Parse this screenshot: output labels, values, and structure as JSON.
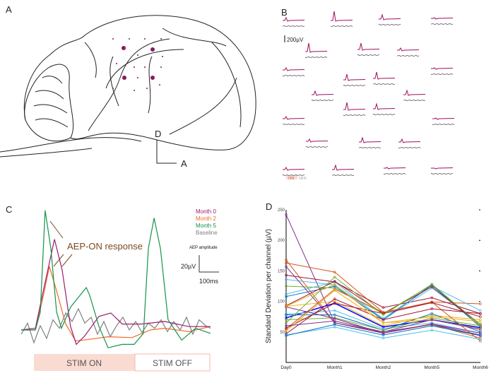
{
  "panels": {
    "a": "A",
    "b": "B",
    "c": "C",
    "d": "D"
  },
  "panel_a": {
    "orientation_dorsal": "D",
    "orientation_anterior": "A"
  },
  "panel_b": {
    "scale_label": "200µV",
    "legend_on": "ON",
    "legend_off": "OFF",
    "colors": {
      "on": "#a0105f",
      "off": "#555555"
    },
    "channel_peaks_uV": [
      80,
      260,
      120,
      20,
      240,
      180,
      60,
      60,
      160,
      180,
      20,
      100,
      120,
      200,
      140,
      60,
      20,
      60,
      120,
      80,
      60,
      120,
      20,
      0
    ]
  },
  "chart_data": [
    {
      "type": "line",
      "panel": "C",
      "annotation": "AEP-ON response",
      "scalebar": {
        "title": "AEP amplitude",
        "y_label": "20µV",
        "x_label": "100ms"
      },
      "stim_on_label": "STIM ON",
      "stim_off_label": "STIM OFF",
      "legend_placement": "top-right",
      "series": [
        {
          "name": "Month 0",
          "color": "#9b1b6e",
          "points": [
            [
              0,
              0
            ],
            [
              67,
              2
            ],
            [
              100,
              41
            ],
            [
              157,
              107
            ],
            [
              193,
              71
            ],
            [
              233,
              4
            ],
            [
              260,
              -17
            ],
            [
              300,
              -7
            ],
            [
              367,
              16
            ],
            [
              423,
              20
            ],
            [
              477,
              7
            ],
            [
              567,
              7
            ],
            [
              677,
              10
            ],
            [
              790,
              4
            ],
            [
              893,
              4
            ]
          ]
        },
        {
          "name": "Month 2",
          "color": "#f26a2a",
          "points": [
            [
              0,
              0
            ],
            [
              67,
              0
            ],
            [
              100,
              35
            ],
            [
              133,
              75
            ],
            [
              167,
              46
            ],
            [
              210,
              7
            ],
            [
              257,
              -13
            ],
            [
              323,
              -11
            ],
            [
              410,
              -8
            ],
            [
              523,
              -9
            ],
            [
              610,
              0
            ],
            [
              677,
              2
            ],
            [
              790,
              -2
            ],
            [
              893,
              4
            ]
          ]
        },
        {
          "name": "Month 5",
          "color": "#16934a",
          "points": [
            [
              0,
              0
            ],
            [
              67,
              0
            ],
            [
              90,
              21
            ],
            [
              113,
              141
            ],
            [
              140,
              96
            ],
            [
              167,
              21
            ],
            [
              190,
              2
            ],
            [
              233,
              27
            ],
            [
              307,
              50
            ],
            [
              323,
              41
            ],
            [
              367,
              4
            ],
            [
              410,
              -21
            ],
            [
              477,
              -17
            ],
            [
              533,
              -17
            ],
            [
              577,
              -4
            ],
            [
              600,
              96
            ],
            [
              627,
              132
            ],
            [
              657,
              96
            ],
            [
              693,
              12
            ],
            [
              757,
              -12
            ],
            [
              823,
              2
            ],
            [
              893,
              -4
            ]
          ]
        },
        {
          "name": "Baseline",
          "color": "#808080",
          "points": [
            [
              0,
              -5
            ],
            [
              30,
              8
            ],
            [
              60,
              -15
            ],
            [
              90,
              5
            ],
            [
              120,
              -10
            ],
            [
              150,
              12
            ],
            [
              180,
              2
            ],
            [
              210,
              20
            ],
            [
              240,
              10
            ],
            [
              270,
              25
            ],
            [
              300,
              8
            ],
            [
              330,
              15
            ],
            [
              360,
              -5
            ],
            [
              390,
              10
            ],
            [
              420,
              -8
            ],
            [
              450,
              5
            ],
            [
              480,
              15
            ],
            [
              510,
              0
            ],
            [
              540,
              10
            ],
            [
              570,
              -3
            ],
            [
              600,
              8
            ],
            [
              630,
              2
            ],
            [
              660,
              12
            ],
            [
              690,
              -2
            ],
            [
              720,
              10
            ],
            [
              750,
              0
            ],
            [
              780,
              15
            ],
            [
              810,
              -5
            ],
            [
              840,
              12
            ],
            [
              870,
              5
            ],
            [
              893,
              2
            ]
          ]
        }
      ]
    },
    {
      "type": "line",
      "panel": "D",
      "ylabel": "Standard Deviation per channel (µV)",
      "categories": [
        "Day0",
        "Month1",
        "Month2",
        "Month5",
        "Month6"
      ],
      "ylim": [
        0,
        250
      ],
      "yticks": [
        50,
        100,
        150,
        200,
        250
      ],
      "grid": false,
      "series": [
        {
          "color": "#7e2f8e",
          "values": [
            242,
            65,
            50,
            62,
            45
          ]
        },
        {
          "color": "#d95319",
          "values": [
            168,
            65,
            48,
            62,
            40
          ]
        },
        {
          "color": "#d95319",
          "values": [
            163,
            148,
            82,
            99,
            96
          ]
        },
        {
          "color": "#a2142f",
          "values": [
            143,
            132,
            90,
            106,
            80
          ]
        },
        {
          "color": "#4dbeee",
          "values": [
            136,
            127,
            72,
            125,
            85
          ]
        },
        {
          "color": "#77ac30",
          "values": [
            125,
            122,
            80,
            127,
            60
          ]
        },
        {
          "color": "#4dbeee",
          "values": [
            112,
            132,
            70,
            122,
            62
          ]
        },
        {
          "color": "#0072bd",
          "values": [
            108,
            125,
            70,
            127,
            58
          ]
        },
        {
          "color": "#a2142f",
          "values": [
            93,
            133,
            80,
            124,
            62
          ]
        },
        {
          "color": "#edb120",
          "values": [
            92,
            100,
            60,
            77,
            70
          ]
        },
        {
          "color": "#0000ff",
          "values": [
            73,
            97,
            58,
            70,
            57
          ]
        },
        {
          "color": "#4dbeee",
          "values": [
            79,
            85,
            55,
            65,
            48
          ]
        },
        {
          "color": "#0072bd",
          "values": [
            78,
            78,
            53,
            80,
            50
          ]
        },
        {
          "color": "#77ac30",
          "values": [
            70,
            73,
            53,
            73,
            60
          ]
        },
        {
          "color": "#7e2f8e",
          "values": [
            91,
            72,
            48,
            63,
            48
          ]
        },
        {
          "color": "#7e2f8e",
          "values": [
            157,
            65,
            48,
            63,
            44
          ]
        },
        {
          "color": "#d95319",
          "values": [
            55,
            120,
            82,
            99,
            35
          ]
        },
        {
          "color": "#a2142f",
          "values": [
            47,
            104,
            70,
            88,
            80
          ]
        },
        {
          "color": "#a2142f",
          "values": [
            56,
            97,
            80,
            98,
            75
          ]
        },
        {
          "color": "#edb120",
          "values": [
            52,
            118,
            65,
            75,
            67
          ]
        },
        {
          "color": "#edb120",
          "values": [
            92,
            128,
            65,
            70,
            55
          ]
        },
        {
          "color": "#4dbeee",
          "values": [
            45,
            58,
            40,
            53,
            38
          ]
        },
        {
          "color": "#0072bd",
          "values": [
            44,
            62,
            45,
            60,
            44
          ]
        },
        {
          "color": "#77ac30",
          "values": [
            65,
            140,
            78,
            128,
            62
          ]
        },
        {
          "color": "#7e2f8e",
          "values": [
            60,
            68,
            50,
            70,
            54
          ]
        }
      ]
    }
  ]
}
